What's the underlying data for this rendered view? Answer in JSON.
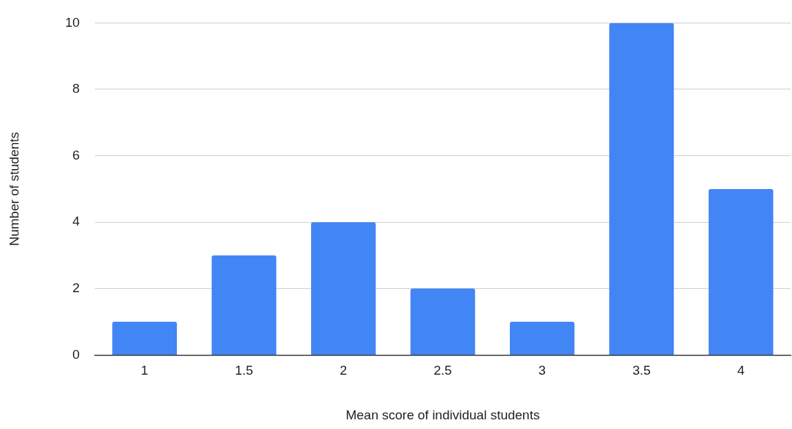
{
  "chart_data": {
    "type": "bar",
    "xlabel": "Mean score of individual students",
    "ylabel": "Number of students",
    "categories": [
      "1",
      "1.5",
      "2",
      "2.5",
      "3",
      "3.5",
      "4"
    ],
    "values": [
      1,
      3,
      4,
      2,
      1,
      10,
      5
    ],
    "color": "#4285f4",
    "ylim": [
      0,
      10
    ],
    "yticks": [
      0,
      2,
      4,
      6,
      8,
      10
    ],
    "grid": "y",
    "legend": false
  }
}
